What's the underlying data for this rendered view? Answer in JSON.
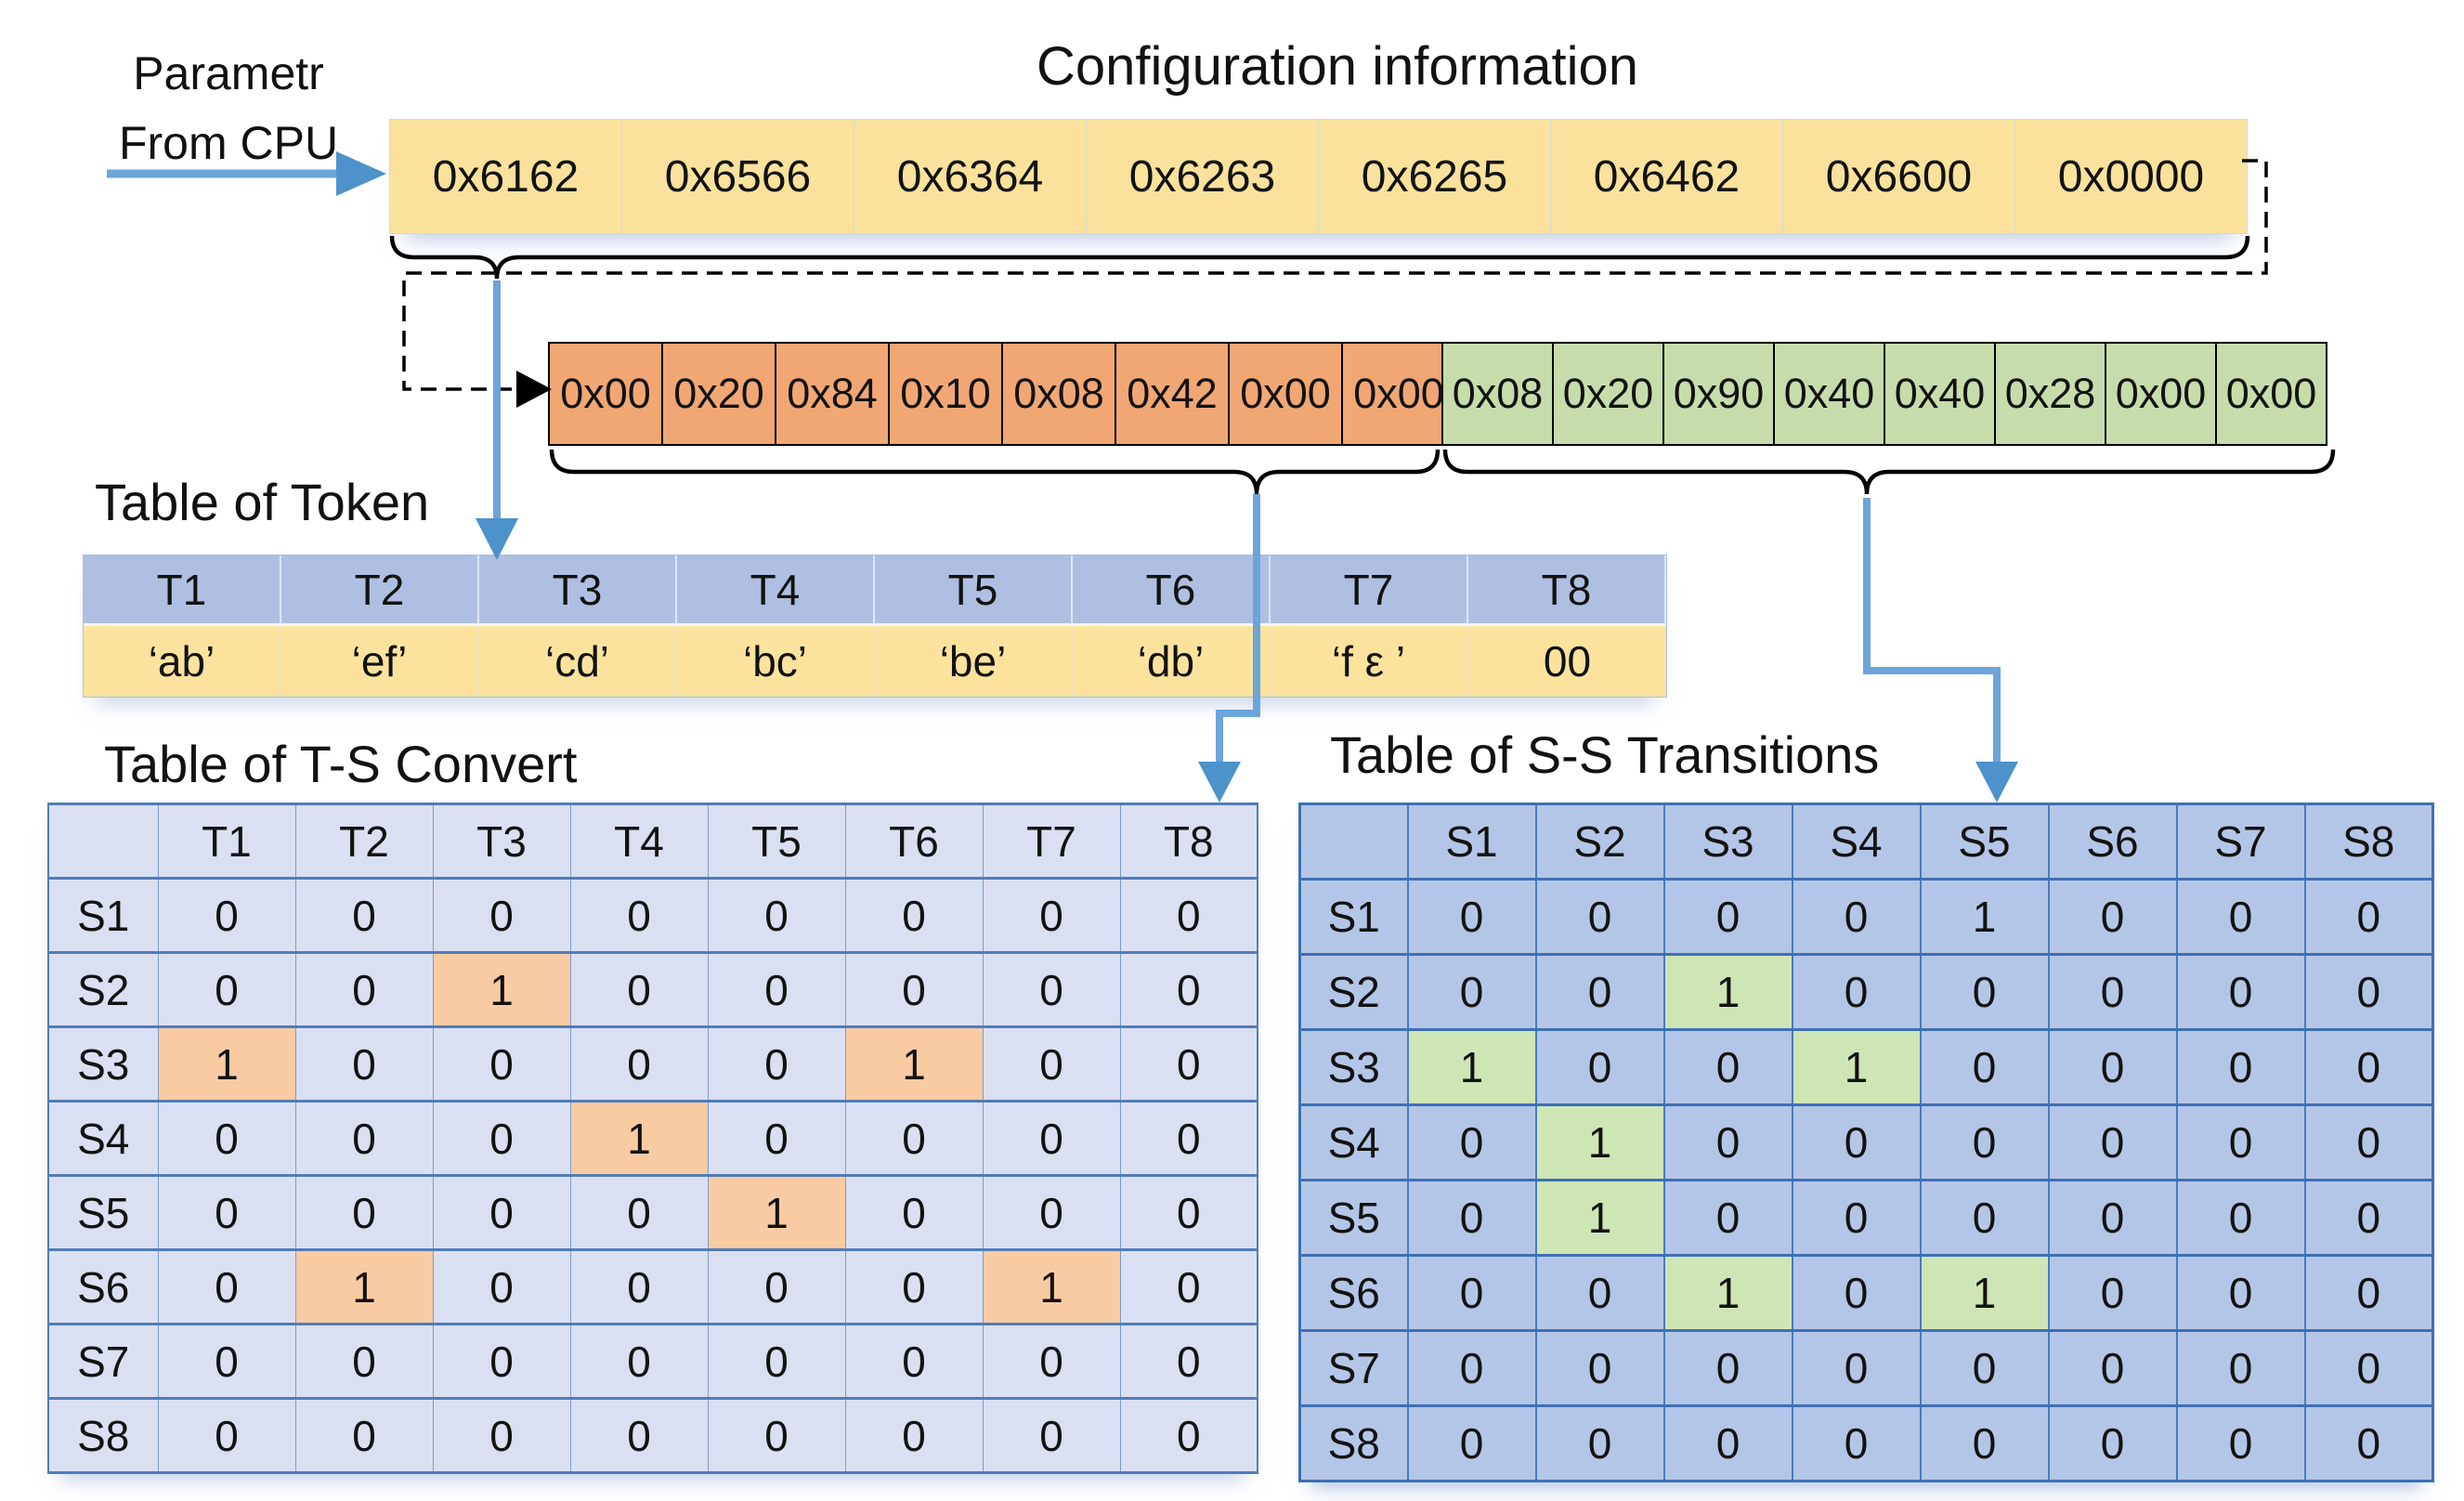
{
  "source": {
    "line1": "Parametr",
    "line2": "From CPU"
  },
  "config_title": "Configuration information",
  "config_words": [
    "0x6162",
    "0x6566",
    "0x6364",
    "0x6263",
    "0x6265",
    "0x6462",
    "0x6600",
    "0x0000"
  ],
  "token_bytes": [
    "0x00",
    "0x20",
    "0x84",
    "0x10",
    "0x08",
    "0x42",
    "0x00",
    "0x00"
  ],
  "transition_bytes": [
    "0x08",
    "0x20",
    "0x90",
    "0x40",
    "0x40",
    "0x28",
    "0x00",
    "0x00"
  ],
  "token_table": {
    "title": "Table of Token",
    "headers": [
      "T1",
      "T2",
      "T3",
      "T4",
      "T5",
      "T6",
      "T7",
      "T8"
    ],
    "values": [
      "‘ab’",
      "‘ef’",
      "‘cd’",
      "‘bc’",
      "‘be’",
      "‘db’",
      "‘f ε ’",
      "00"
    ]
  },
  "ts_table": {
    "title": "Table of T-S Convert",
    "col_headers": [
      "T1",
      "T2",
      "T3",
      "T4",
      "T5",
      "T6",
      "T7",
      "T8"
    ],
    "row_headers": [
      "S1",
      "S2",
      "S3",
      "S4",
      "S5",
      "S6",
      "S7",
      "S8"
    ],
    "matrix": [
      [
        0,
        0,
        0,
        0,
        0,
        0,
        0,
        0
      ],
      [
        0,
        0,
        1,
        0,
        0,
        0,
        0,
        0
      ],
      [
        1,
        0,
        0,
        0,
        0,
        1,
        0,
        0
      ],
      [
        0,
        0,
        0,
        1,
        0,
        0,
        0,
        0
      ],
      [
        0,
        0,
        0,
        0,
        1,
        0,
        0,
        0
      ],
      [
        0,
        1,
        0,
        0,
        0,
        0,
        1,
        0
      ],
      [
        0,
        0,
        0,
        0,
        0,
        0,
        0,
        0
      ],
      [
        0,
        0,
        0,
        0,
        0,
        0,
        0,
        0
      ]
    ],
    "highlights": [
      [
        1,
        2
      ],
      [
        2,
        0
      ],
      [
        2,
        5
      ],
      [
        3,
        3
      ],
      [
        4,
        4
      ],
      [
        5,
        1
      ],
      [
        5,
        6
      ]
    ],
    "highlight_color": "#F9CBA3"
  },
  "ss_table": {
    "title": "Table of S-S Transitions",
    "col_headers": [
      "S1",
      "S2",
      "S3",
      "S4",
      "S5",
      "S6",
      "S7",
      "S8"
    ],
    "row_headers": [
      "S1",
      "S2",
      "S3",
      "S4",
      "S5",
      "S6",
      "S7",
      "S8"
    ],
    "matrix": [
      [
        0,
        0,
        0,
        0,
        1,
        0,
        0,
        0
      ],
      [
        0,
        0,
        1,
        0,
        0,
        0,
        0,
        0
      ],
      [
        1,
        0,
        0,
        1,
        0,
        0,
        0,
        0
      ],
      [
        0,
        1,
        0,
        0,
        0,
        0,
        0,
        0
      ],
      [
        0,
        1,
        0,
        0,
        0,
        0,
        0,
        0
      ],
      [
        0,
        0,
        1,
        0,
        1,
        0,
        0,
        0
      ],
      [
        0,
        0,
        0,
        0,
        0,
        0,
        0,
        0
      ],
      [
        0,
        0,
        0,
        0,
        0,
        0,
        0,
        0
      ]
    ],
    "highlights": [
      [
        1,
        2
      ],
      [
        2,
        0
      ],
      [
        2,
        3
      ],
      [
        3,
        1
      ],
      [
        4,
        1
      ],
      [
        5,
        2
      ],
      [
        5,
        4
      ]
    ],
    "highlight_color": "#CEE6B5"
  },
  "colors": {
    "config_cell": "#FAE29C",
    "token_value_cell": "#FBE39E",
    "header_blue": "#AEBFE2",
    "byte_orange": "#F1A774",
    "byte_green": "#C6DDAB",
    "ts_cell": "#DAE0F2",
    "ss_cell": "#B4C6E7",
    "arrow_blue": "#6BA5DA",
    "arrow_head_blue": "#4D92CB"
  }
}
